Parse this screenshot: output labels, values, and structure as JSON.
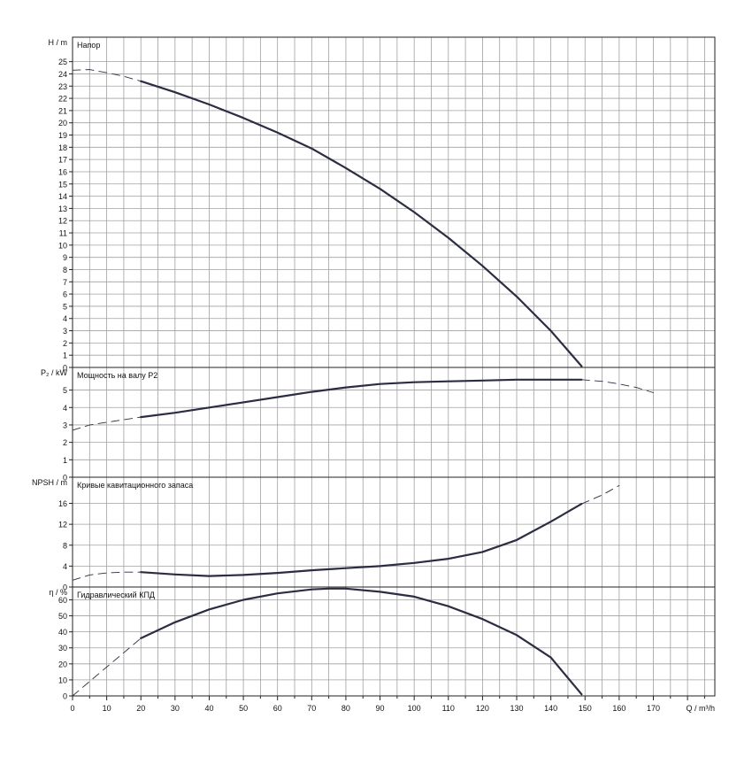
{
  "chart_data": [
    {
      "type": "line",
      "panel": "head",
      "title": "Напор",
      "ylabel": "H / m",
      "xlim": [
        0,
        188
      ],
      "ylim": [
        0,
        27
      ],
      "y_ticks": [
        0,
        1,
        2,
        3,
        4,
        5,
        6,
        7,
        8,
        9,
        10,
        11,
        12,
        13,
        14,
        15,
        16,
        17,
        18,
        19,
        20,
        21,
        22,
        23,
        24,
        25
      ],
      "grid": true,
      "series": [
        {
          "style": "dashed",
          "x": [
            0,
            5,
            10,
            15,
            20
          ],
          "y": [
            24.3,
            24.35,
            24.1,
            23.8,
            23.4
          ]
        },
        {
          "style": "solid",
          "x": [
            20,
            30,
            40,
            50,
            60,
            70,
            80,
            90,
            100,
            110,
            120,
            130,
            140,
            149
          ],
          "y": [
            23.4,
            22.5,
            21.5,
            20.4,
            19.2,
            17.9,
            16.3,
            14.6,
            12.7,
            10.6,
            8.3,
            5.8,
            3.0,
            0.1
          ]
        }
      ]
    },
    {
      "type": "line",
      "panel": "power",
      "title": "Мощность на валу P2",
      "ylabel": "P₂ / kW",
      "xlim": [
        0,
        188
      ],
      "ylim": [
        0,
        6.3
      ],
      "y_ticks": [
        0,
        1,
        2,
        3,
        4,
        5
      ],
      "grid": true,
      "series": [
        {
          "style": "dashed",
          "x": [
            0,
            5,
            10,
            15,
            20
          ],
          "y": [
            2.7,
            3.0,
            3.15,
            3.3,
            3.45
          ]
        },
        {
          "style": "solid",
          "x": [
            20,
            30,
            40,
            50,
            60,
            70,
            80,
            90,
            100,
            110,
            120,
            130,
            140,
            149
          ],
          "y": [
            3.45,
            3.7,
            4.0,
            4.3,
            4.6,
            4.9,
            5.15,
            5.35,
            5.45,
            5.5,
            5.55,
            5.6,
            5.6,
            5.6
          ]
        },
        {
          "style": "dashed",
          "x": [
            149,
            155,
            160,
            165,
            170
          ],
          "y": [
            5.6,
            5.5,
            5.35,
            5.15,
            4.85
          ]
        }
      ]
    },
    {
      "type": "line",
      "panel": "npsh",
      "title": "Кривые кавитационного запаса",
      "ylabel": "NPSH / m",
      "xlim": [
        0,
        188
      ],
      "ylim": [
        0,
        21
      ],
      "y_ticks": [
        0,
        4,
        8,
        12,
        16
      ],
      "grid": true,
      "series": [
        {
          "style": "dashed",
          "x": [
            0,
            5,
            10,
            15,
            20
          ],
          "y": [
            1.3,
            2.3,
            2.7,
            2.85,
            2.85
          ]
        },
        {
          "style": "solid",
          "x": [
            20,
            30,
            40,
            50,
            60,
            70,
            80,
            90,
            100,
            110,
            120,
            130,
            140,
            149
          ],
          "y": [
            2.85,
            2.4,
            2.1,
            2.3,
            2.7,
            3.2,
            3.6,
            4.0,
            4.6,
            5.4,
            6.7,
            9.0,
            12.5,
            15.9
          ]
        },
        {
          "style": "dashed",
          "x": [
            149,
            155,
            160
          ],
          "y": [
            15.9,
            17.6,
            19.4
          ]
        }
      ]
    },
    {
      "type": "line",
      "panel": "efficiency",
      "title": "Гидравлический КПД",
      "ylabel": "η / %",
      "xlabel": "Q / m³/h",
      "xlim": [
        0,
        188
      ],
      "ylim": [
        0,
        68
      ],
      "x_ticks": [
        0,
        10,
        20,
        30,
        40,
        50,
        60,
        70,
        80,
        90,
        100,
        110,
        120,
        130,
        140,
        150,
        160,
        170
      ],
      "y_ticks": [
        0,
        10,
        20,
        30,
        40,
        50,
        60
      ],
      "grid": true,
      "series": [
        {
          "style": "dashed",
          "x": [
            0,
            5,
            10,
            15,
            20
          ],
          "y": [
            0,
            9,
            18,
            27,
            36
          ]
        },
        {
          "style": "solid",
          "x": [
            20,
            30,
            40,
            50,
            60,
            70,
            75,
            80,
            90,
            100,
            110,
            120,
            130,
            140,
            149
          ],
          "y": [
            36,
            46,
            54,
            60,
            64,
            66.5,
            67,
            67,
            65,
            62,
            56,
            48,
            38,
            24,
            1
          ]
        }
      ]
    }
  ]
}
